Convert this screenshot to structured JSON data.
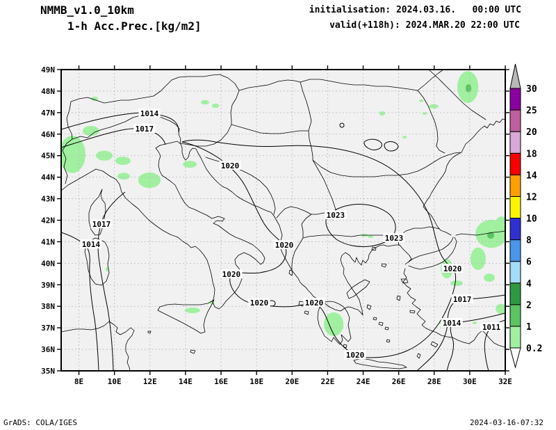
{
  "header": {
    "model_line": "NMMB_v1.0_10km",
    "product_line": "1-h Acc.Prec.[kg/m2]",
    "init_line": "initialisation: 2024.03.16.   00:00 UTC",
    "valid_line": "valid(+118h): 2024.MAR.20 22:00 UTC"
  },
  "footer": {
    "grads_credit": "GrADS: COLA/IGES",
    "timestamp": "2024-03-16-07:32"
  },
  "chart_data": {
    "type": "contour-map",
    "model": "NMMB_v1.0_10km",
    "title": "1-h Acc.Prec.[kg/m2]",
    "initialisation": "2024.03.16. 00:00 UTC",
    "valid": "+118h: 2024.MAR.20 22:00 UTC",
    "projection": {
      "lon_range": [
        7,
        32
      ],
      "lat_range": [
        35,
        49
      ]
    },
    "x_axis": {
      "tick_labels": [
        "8E",
        "10E",
        "12E",
        "14E",
        "16E",
        "18E",
        "20E",
        "22E",
        "24E",
        "26E",
        "28E",
        "30E",
        "32E"
      ]
    },
    "y_axis": {
      "tick_labels": [
        "49N",
        "48N",
        "47N",
        "46N",
        "45N",
        "44N",
        "43N",
        "42N",
        "41N",
        "40N",
        "39N",
        "38N",
        "37N",
        "36N",
        "35N"
      ]
    },
    "grid": {
      "lon_step": 2,
      "lat_step": 1,
      "style": "dashed"
    },
    "colorbar": {
      "units": "kg/m2",
      "levels": [
        0.2,
        1,
        2,
        4,
        6,
        8,
        10,
        12,
        14,
        18,
        20,
        25,
        30
      ],
      "band_colors": [
        "#a0f0a0",
        "#5cc463",
        "#2f9941",
        "#a5dcfa",
        "#4a96e8",
        "#3030d0",
        "#fdf500",
        "#ffa000",
        "#f80000",
        "#d8a8d8",
        "#c05f9e",
        "#8a00a0"
      ],
      "over_color": "#b8b8b8",
      "under_color": "#ffffff"
    },
    "isobars": {
      "levels_shown": [
        1011,
        1014,
        1017,
        1020,
        1023
      ],
      "labels": [
        {
          "v": "1014",
          "lon": 11.97,
          "lat": 46.96
        },
        {
          "v": "1017",
          "lon": 11.69,
          "lat": 46.25
        },
        {
          "v": "1020",
          "lon": 16.51,
          "lat": 44.54
        },
        {
          "v": "1017",
          "lon": 9.27,
          "lat": 41.82
        },
        {
          "v": "1014",
          "lon": 8.68,
          "lat": 40.88
        },
        {
          "v": "1020",
          "lon": 19.56,
          "lat": 40.85
        },
        {
          "v": "1023",
          "lon": 22.45,
          "lat": 42.24
        },
        {
          "v": "1023",
          "lon": 25.74,
          "lat": 41.18
        },
        {
          "v": "1020",
          "lon": 16.58,
          "lat": 39.49
        },
        {
          "v": "1020",
          "lon": 18.15,
          "lat": 38.17
        },
        {
          "v": "1020",
          "lon": 21.24,
          "lat": 38.17
        },
        {
          "v": "1020",
          "lon": 29.03,
          "lat": 39.75
        },
        {
          "v": "1017",
          "lon": 29.58,
          "lat": 38.33
        },
        {
          "v": "1014",
          "lon": 28.99,
          "lat": 37.23
        },
        {
          "v": "1011",
          "lon": 31.22,
          "lat": 37.04
        },
        {
          "v": "1020",
          "lon": 23.55,
          "lat": 35.74
        }
      ]
    },
    "precip": {
      "colors": {
        "0.2-1": "#a0f0a0",
        "1-2": "#5cc463"
      },
      "cells": [
        {
          "lon": 7.63,
          "lat": 45.06,
          "rlon": 0.74,
          "rlat": 0.87,
          "range": "0.2-1"
        },
        {
          "lon": 8.68,
          "lat": 46.15,
          "rlon": 0.47,
          "rlat": 0.23,
          "range": "0.2-1"
        },
        {
          "lon": 9.43,
          "lat": 45.0,
          "rlon": 0.47,
          "rlat": 0.23,
          "range": "0.2-1"
        },
        {
          "lon": 10.48,
          "lat": 44.76,
          "rlon": 0.43,
          "rlat": 0.19,
          "range": "0.2-1"
        },
        {
          "lon": 10.52,
          "lat": 44.05,
          "rlon": 0.35,
          "rlat": 0.16,
          "range": "0.2-1"
        },
        {
          "lon": 11.97,
          "lat": 43.86,
          "rlon": 0.63,
          "rlat": 0.36,
          "range": "0.2-1"
        },
        {
          "lon": 14.24,
          "lat": 44.6,
          "rlon": 0.39,
          "rlat": 0.16,
          "range": "0.2-1"
        },
        {
          "lon": 8.88,
          "lat": 47.64,
          "rlon": 0.2,
          "rlat": 0.1,
          "range": "0.2-1"
        },
        {
          "lon": 15.1,
          "lat": 47.48,
          "rlon": 0.23,
          "rlat": 0.1,
          "range": "0.2-1"
        },
        {
          "lon": 15.69,
          "lat": 47.32,
          "rlon": 0.2,
          "rlat": 0.1,
          "range": "0.2-1"
        },
        {
          "lon": 29.89,
          "lat": 48.19,
          "rlon": 0.59,
          "rlat": 0.74,
          "range": "0.2-1"
        },
        {
          "lon": 29.93,
          "lat": 48.13,
          "rlon": 0.16,
          "rlat": 0.19,
          "range": "1-2"
        },
        {
          "lon": 27.97,
          "lat": 47.29,
          "rlon": 0.27,
          "rlat": 0.1,
          "range": "0.2-1"
        },
        {
          "lon": 27.27,
          "lat": 47.55,
          "rlon": 0.12,
          "rlat": 0.06,
          "range": "0.2-1"
        },
        {
          "lon": 27.46,
          "lat": 46.96,
          "rlon": 0.12,
          "rlat": 0.06,
          "range": "0.2-1"
        },
        {
          "lon": 25.07,
          "lat": 46.96,
          "rlon": 0.16,
          "rlat": 0.1,
          "range": "0.2-1"
        },
        {
          "lon": 26.33,
          "lat": 45.86,
          "rlon": 0.12,
          "rlat": 0.06,
          "range": "0.2-1"
        },
        {
          "lon": 31.22,
          "lat": 41.37,
          "rlon": 0.9,
          "rlat": 0.65,
          "range": "0.2-1"
        },
        {
          "lon": 31.18,
          "lat": 41.3,
          "rlon": 0.2,
          "rlat": 0.16,
          "range": "1-2"
        },
        {
          "lon": 30.47,
          "lat": 40.21,
          "rlon": 0.43,
          "rlat": 0.52,
          "range": "0.2-1"
        },
        {
          "lon": 31.1,
          "lat": 39.33,
          "rlon": 0.31,
          "rlat": 0.19,
          "range": "0.2-1"
        },
        {
          "lon": 28.71,
          "lat": 39.75,
          "rlon": 0.35,
          "rlat": 0.45,
          "range": "0.2-1"
        },
        {
          "lon": 29.26,
          "lat": 39.07,
          "rlon": 0.35,
          "rlat": 0.13,
          "range": "0.2-1"
        },
        {
          "lon": 31.81,
          "lat": 41.98,
          "rlon": 0.31,
          "rlat": 0.19,
          "range": "0.2-1"
        },
        {
          "lon": 31.77,
          "lat": 37.88,
          "rlon": 0.31,
          "rlat": 0.23,
          "range": "0.2-1"
        },
        {
          "lon": 22.34,
          "lat": 37.17,
          "rlon": 0.55,
          "rlat": 0.55,
          "range": "0.2-1"
        },
        {
          "lon": 14.39,
          "lat": 37.81,
          "rlon": 0.43,
          "rlat": 0.13,
          "range": "0.2-1"
        },
        {
          "lon": 9.58,
          "lat": 39.72,
          "rlon": 0.08,
          "rlat": 0.1,
          "range": "0.2-1"
        },
        {
          "lon": 15.49,
          "lat": 38.17,
          "rlon": 0.12,
          "rlat": 0.1,
          "range": "0.2-1"
        },
        {
          "lon": 28.44,
          "lat": 37.23,
          "rlon": 0.16,
          "rlat": 0.06,
          "range": "0.2-1"
        },
        {
          "lon": 30.28,
          "lat": 37.23,
          "rlon": 0.12,
          "rlat": 0.06,
          "range": "0.2-1"
        },
        {
          "lon": 24.06,
          "lat": 41.3,
          "rlon": 0.2,
          "rlat": 0.06,
          "range": "0.2-1"
        },
        {
          "lon": 24.41,
          "lat": 41.24,
          "rlon": 0.16,
          "rlat": 0.06,
          "range": "0.2-1"
        }
      ]
    }
  }
}
